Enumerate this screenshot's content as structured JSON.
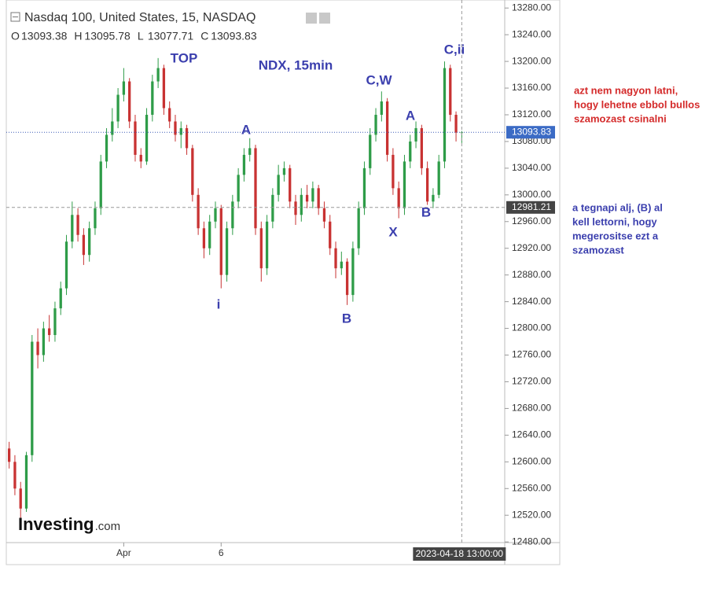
{
  "chart_data": {
    "type": "candlestick",
    "title": "Nasdaq 100, United States, 15, NASDAQ",
    "ohlc_header": [
      {
        "label": "O",
        "value": "13093.38"
      },
      {
        "label": "H",
        "value": "13095.78"
      },
      {
        "label": "L",
        "value": "13077.71"
      },
      {
        "label": "C",
        "value": "13093.83"
      }
    ],
    "up_color": "#2e9c48",
    "down_color": "#c83232",
    "candles": [
      [
        12620,
        12630,
        12590,
        12600
      ],
      [
        12600,
        12610,
        12550,
        12560
      ],
      [
        12560,
        12570,
        12515,
        12530
      ],
      [
        12530,
        12615,
        12525,
        12610
      ],
      [
        12610,
        12790,
        12600,
        12780
      ],
      [
        12780,
        12800,
        12740,
        12760
      ],
      [
        12760,
        12810,
        12750,
        12800
      ],
      [
        12800,
        12820,
        12780,
        12790
      ],
      [
        12790,
        12840,
        12780,
        12830
      ],
      [
        12830,
        12870,
        12820,
        12860
      ],
      [
        12860,
        12940,
        12850,
        12930
      ],
      [
        12930,
        12990,
        12920,
        12970
      ],
      [
        12970,
        12980,
        12930,
        12940
      ],
      [
        12940,
        12950,
        12895,
        12910
      ],
      [
        12910,
        12960,
        12900,
        12950
      ],
      [
        12950,
        12990,
        12940,
        12980
      ],
      [
        12980,
        13060,
        12970,
        13050
      ],
      [
        13050,
        13100,
        13040,
        13090
      ],
      [
        13090,
        13130,
        13080,
        13110
      ],
      [
        13110,
        13160,
        13100,
        13150
      ],
      [
        13150,
        13190,
        13140,
        13170
      ],
      [
        13170,
        13175,
        13100,
        13110
      ],
      [
        13110,
        13120,
        13050,
        13060
      ],
      [
        13060,
        13070,
        13040,
        13050
      ],
      [
        13050,
        13130,
        13045,
        13120
      ],
      [
        13120,
        13180,
        13110,
        13170
      ],
      [
        13170,
        13205,
        13160,
        13190
      ],
      [
        13190,
        13195,
        13120,
        13130
      ],
      [
        13130,
        13140,
        13100,
        13110
      ],
      [
        13110,
        13120,
        13080,
        13090
      ],
      [
        13090,
        13110,
        13070,
        13100
      ],
      [
        13100,
        13105,
        13060,
        13070
      ],
      [
        13070,
        13075,
        12990,
        13000
      ],
      [
        13000,
        13010,
        12940,
        12950
      ],
      [
        12950,
        12960,
        12905,
        12920
      ],
      [
        12920,
        12970,
        12910,
        12960
      ],
      [
        12960,
        12990,
        12950,
        12980
      ],
      [
        12980,
        12985,
        12860,
        12880
      ],
      [
        12880,
        12960,
        12870,
        12950
      ],
      [
        12950,
        13000,
        12940,
        12990
      ],
      [
        12990,
        13040,
        12980,
        13030
      ],
      [
        13030,
        13070,
        13020,
        13060
      ],
      [
        13060,
        13085,
        13050,
        13070
      ],
      [
        13070,
        13075,
        12940,
        12950
      ],
      [
        12950,
        12960,
        12870,
        12890
      ],
      [
        12890,
        12970,
        12880,
        12960
      ],
      [
        12960,
        13010,
        12950,
        13000
      ],
      [
        13000,
        13045,
        12990,
        13030
      ],
      [
        13030,
        13050,
        13020,
        13040
      ],
      [
        13040,
        13045,
        12980,
        12990
      ],
      [
        12990,
        13000,
        12955,
        12970
      ],
      [
        12970,
        13010,
        12960,
        13000
      ],
      [
        13000,
        13015,
        12980,
        12990
      ],
      [
        12990,
        13020,
        12980,
        13010
      ],
      [
        13010,
        13015,
        12970,
        12980
      ],
      [
        12980,
        12990,
        12950,
        12960
      ],
      [
        12960,
        12970,
        12910,
        12920
      ],
      [
        12920,
        12930,
        12875,
        12890
      ],
      [
        12890,
        12915,
        12880,
        12900
      ],
      [
        12900,
        12905,
        12835,
        12850
      ],
      [
        12850,
        12930,
        12840,
        12920
      ],
      [
        12920,
        12990,
        12910,
        12980
      ],
      [
        12980,
        13050,
        12970,
        13040
      ],
      [
        13040,
        13100,
        13030,
        13090
      ],
      [
        13090,
        13130,
        13080,
        13120
      ],
      [
        13120,
        13155,
        13110,
        13140
      ],
      [
        13140,
        13145,
        13050,
        13060
      ],
      [
        13060,
        13070,
        13000,
        13010
      ],
      [
        13010,
        13020,
        12965,
        12980
      ],
      [
        12980,
        13060,
        12970,
        13050
      ],
      [
        13050,
        13090,
        13040,
        13080
      ],
      [
        13080,
        13110,
        13070,
        13100
      ],
      [
        13100,
        13105,
        13030,
        13040
      ],
      [
        13040,
        13050,
        12985,
        12990
      ],
      [
        12990,
        13010,
        12980,
        13000
      ],
      [
        13000,
        13060,
        12995,
        13050
      ],
      [
        13050,
        13200,
        13040,
        13190
      ],
      [
        13190,
        13195,
        13110,
        13120
      ],
      [
        13120,
        13125,
        13080,
        13093.38
      ],
      [
        13093.38,
        13095.78,
        13077.71,
        13093.83
      ]
    ],
    "xlim": [
      -0.5,
      86.5
    ],
    "xticks": [
      {
        "value": 20,
        "label": "Apr"
      },
      {
        "value": 37,
        "label": "6"
      }
    ],
    "ylim": [
      12479,
      13292
    ],
    "yticks": [
      {
        "value": 12480,
        "label": "12480.00"
      },
      {
        "value": 12520,
        "label": "12520.00"
      },
      {
        "value": 12560,
        "label": "12560.00"
      },
      {
        "value": 12600,
        "label": "12600.00"
      },
      {
        "value": 12640,
        "label": "12640.00"
      },
      {
        "value": 12680,
        "label": "12680.00"
      },
      {
        "value": 12720,
        "label": "12720.00"
      },
      {
        "value": 12760,
        "label": "12760.00"
      },
      {
        "value": 12800,
        "label": "12800.00"
      },
      {
        "value": 12840,
        "label": "12840.00"
      },
      {
        "value": 12880,
        "label": "12880.00"
      },
      {
        "value": 12920,
        "label": "12920.00"
      },
      {
        "value": 12960,
        "label": "12960.00"
      },
      {
        "value": 13000,
        "label": "13000.00"
      },
      {
        "value": 13040,
        "label": "13040.00"
      },
      {
        "value": 13080,
        "label": "13080.00"
      },
      {
        "value": 13120,
        "label": "13120.00"
      },
      {
        "value": 13160,
        "label": "13160.00"
      },
      {
        "value": 13200,
        "label": "13200.00"
      },
      {
        "value": 13240,
        "label": "13240.00"
      },
      {
        "value": 13280,
        "label": "13280.00"
      }
    ],
    "last_price": 13093.83,
    "crosshair_price": 12981.21,
    "crosshair_x": 79,
    "crosshair_date": "2023-04-18 13:00:00",
    "annotations": [
      "TOP",
      "NDX, 15min",
      "C,W",
      "A",
      "i",
      "B",
      "X",
      "A",
      "B",
      "C,ii"
    ],
    "note_red": [
      "azt nem nagyon latni,",
      "hogy lehetne ebbol bullos",
      "szamozast csinalni"
    ],
    "note_blue": [
      "a tegnapi alj, (B) al",
      "kell lettorni, hogy",
      "megerositse ezt a",
      "szamozast"
    ],
    "watermark": [
      "Investing",
      ".com"
    ]
  }
}
